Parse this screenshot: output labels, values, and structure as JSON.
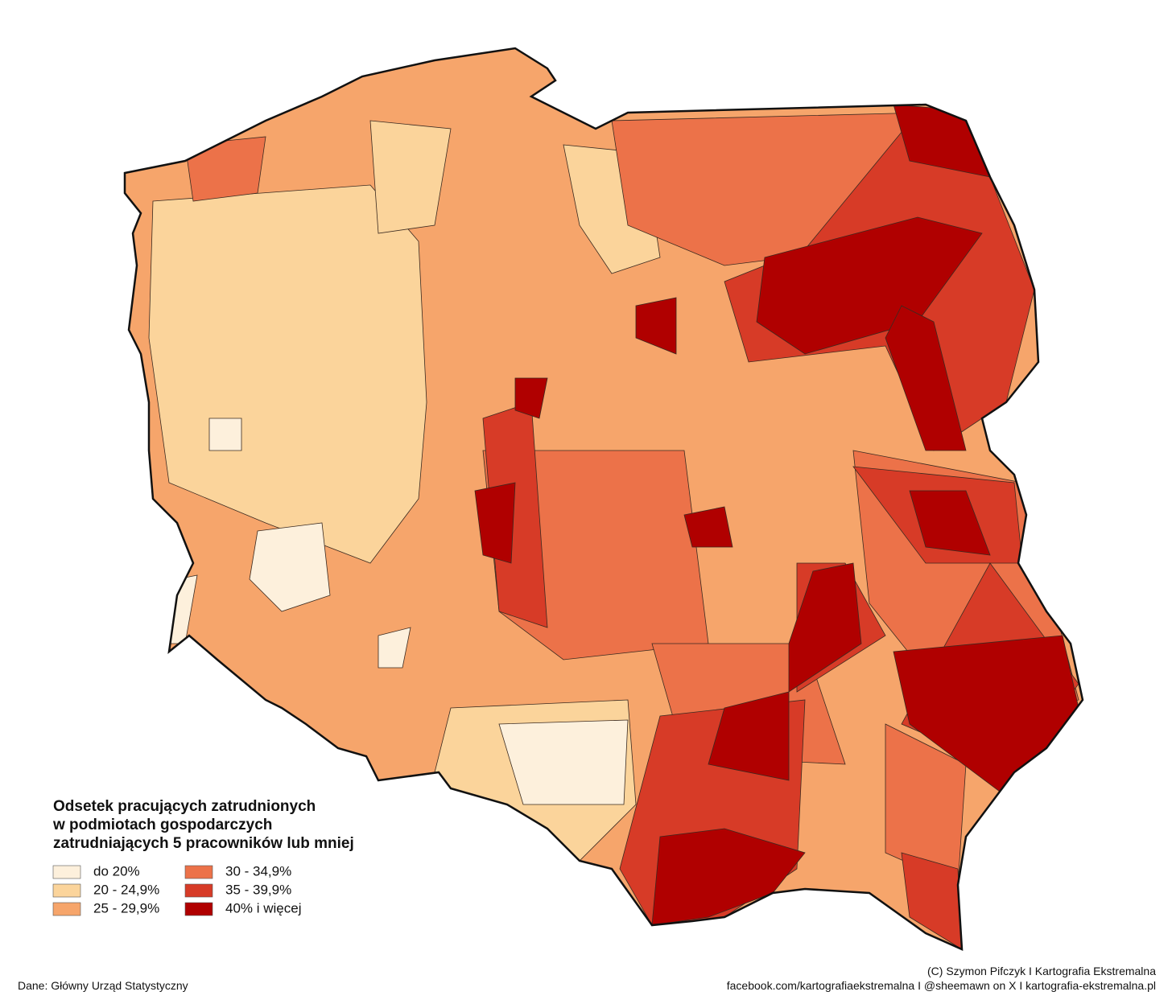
{
  "legend": {
    "title": [
      "Odsetek pracujących zatrudnionych",
      "w podmiotach gospodarczych",
      "zatrudniających 5 pracowników lub mniej"
    ],
    "items": [
      {
        "label": "do 20%",
        "color": "#fdf0dc"
      },
      {
        "label": "20 - 24,9%",
        "color": "#fbd49b"
      },
      {
        "label": "25 - 29,9%",
        "color": "#f6a56b"
      },
      {
        "label": "30 - 34,9%",
        "color": "#ec7249"
      },
      {
        "label": "35 - 39,9%",
        "color": "#d73b27"
      },
      {
        "label": "40% i więcej",
        "color": "#b00000"
      }
    ]
  },
  "source": "Dane: Główny Urząd Statystyczny",
  "credits": [
    "(C) Szymon Pifczyk I Kartografia Ekstremalna",
    "facebook.com/kartografiaekstremalna I @sheemawn on X I kartografia-ekstremalna.pl"
  ]
}
